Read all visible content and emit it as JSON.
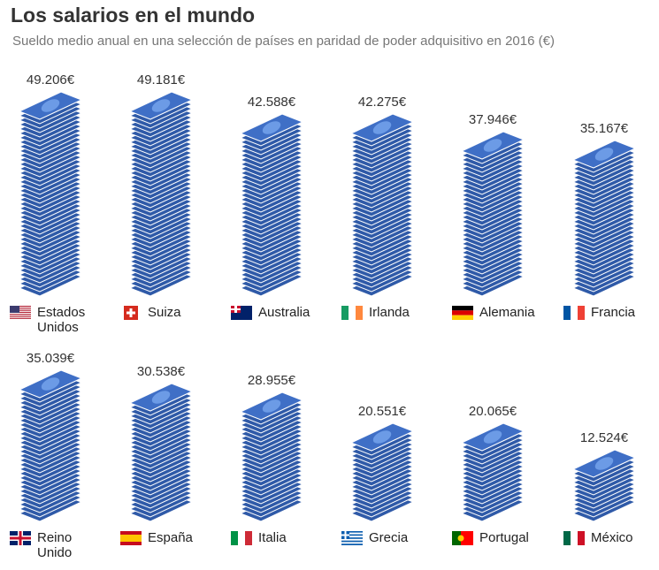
{
  "chart_data": {
    "type": "bar",
    "title": "Los salarios en el mundo",
    "subtitle": "Sueldo medio anual en una selección de países en paridad de poder adquisitivo en 2016 (€)",
    "categories": [
      "Estados Unidos",
      "Suiza",
      "Australia",
      "Irlanda",
      "Alemania",
      "Francia",
      "Reino Unido",
      "España",
      "Italia",
      "Grecia",
      "Portugal",
      "México"
    ],
    "values": [
      49206,
      49181,
      42588,
      42275,
      37946,
      35167,
      35039,
      30538,
      28955,
      20551,
      20065,
      12524
    ],
    "value_labels": [
      "49.206€",
      "49.181€",
      "42.588€",
      "42.275€",
      "37.946€",
      "35.167€",
      "35.039€",
      "30.538€",
      "28.955€",
      "20.551€",
      "20.065€",
      "12.524€"
    ],
    "color": "#2f5aa8"
  }
}
